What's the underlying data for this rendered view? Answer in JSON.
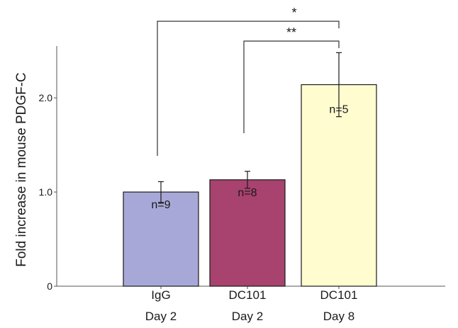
{
  "chart_data": {
    "type": "bar",
    "categories": [
      [
        "IgG",
        "Day 2"
      ],
      [
        "DC101",
        "Day 2"
      ],
      [
        "DC101",
        "Day 8"
      ]
    ],
    "values": [
      1.0,
      1.13,
      2.14
    ],
    "errors": [
      0.11,
      0.09,
      0.34
    ],
    "n_labels": [
      "n=9",
      "n=8",
      "n=5"
    ],
    "bar_colors": [
      "#a8a8d8",
      "#a8426e",
      "#fffcd0"
    ],
    "ylabel": "Fold increase in mouse PDGF-C",
    "yticks": [
      0,
      1.0,
      2.0
    ],
    "ytick_labels": [
      "0",
      "1.0",
      "2.0"
    ],
    "ylim": [
      0,
      2.55
    ],
    "significance": [
      {
        "from": 0,
        "to": 2,
        "label": "*"
      },
      {
        "from": 1,
        "to": 2,
        "label": "**"
      }
    ],
    "grid": false,
    "legend": "none"
  }
}
